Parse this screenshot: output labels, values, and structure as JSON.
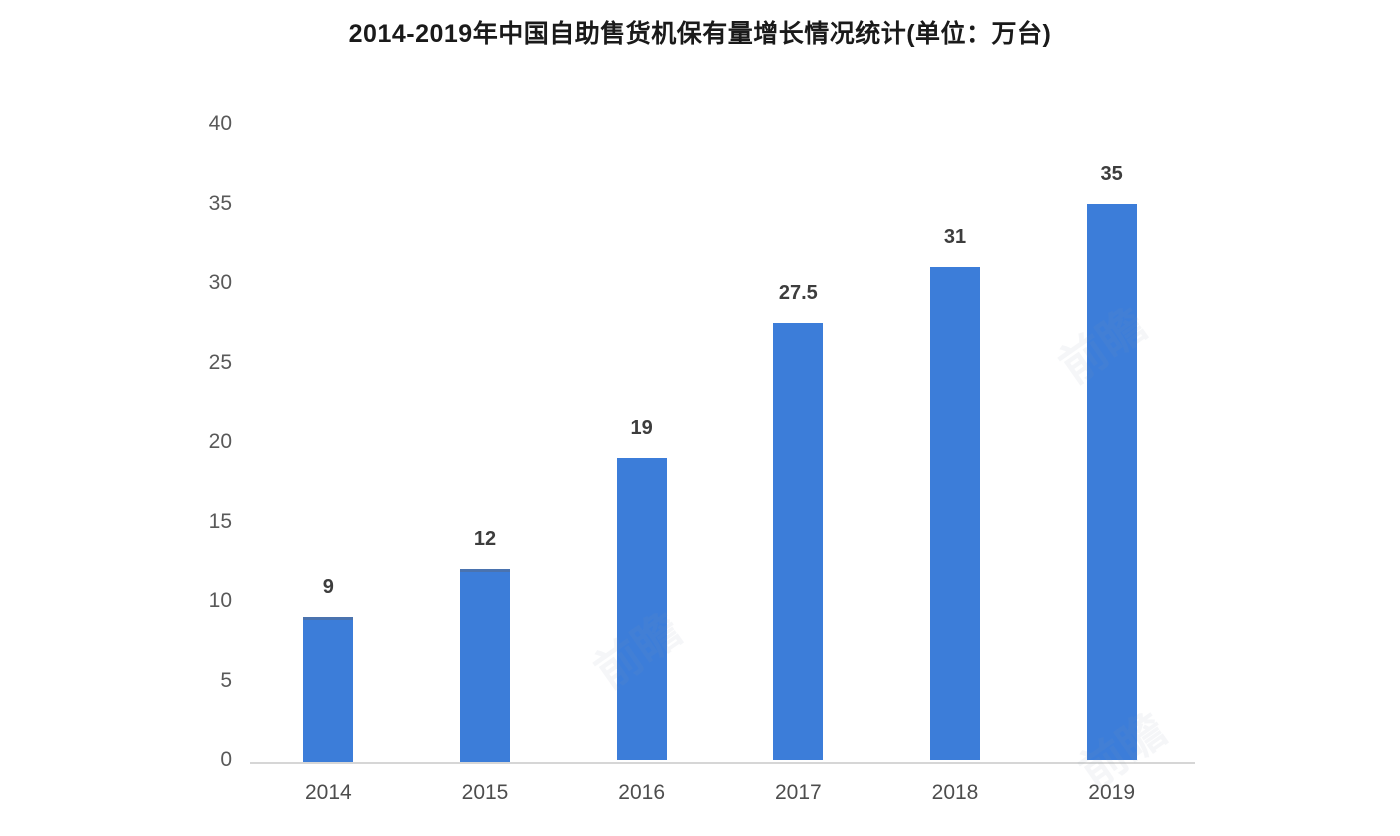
{
  "title": "2014-2019年中国自助售货机保有量增长情况统计(单位：万台)",
  "chart_data": {
    "type": "bar",
    "title": "2014-2019年中国自助售货机保有量增长情况统计(单位：万台)",
    "categories": [
      "2014",
      "2015",
      "2016",
      "2017",
      "2018",
      "2019"
    ],
    "values": [
      9,
      12,
      19,
      27.5,
      31,
      35
    ],
    "value_labels": [
      "9",
      "12",
      "19",
      "27.5",
      "31",
      "35"
    ],
    "xlabel": "",
    "ylabel": "",
    "ylim": [
      0,
      40
    ],
    "yticks": [
      0,
      5,
      10,
      15,
      20,
      25,
      30,
      35,
      40
    ],
    "grid": false,
    "legend": false,
    "bar_color": "#3c7dd9",
    "axis_line_color": "#d6d6d6",
    "ytick_color": "#595959",
    "xtick_color": "#4d4d4d",
    "value_label_color": "#3d3d3d",
    "title_color": "#1a1a1a"
  },
  "watermark": {
    "text": "前瞻"
  }
}
